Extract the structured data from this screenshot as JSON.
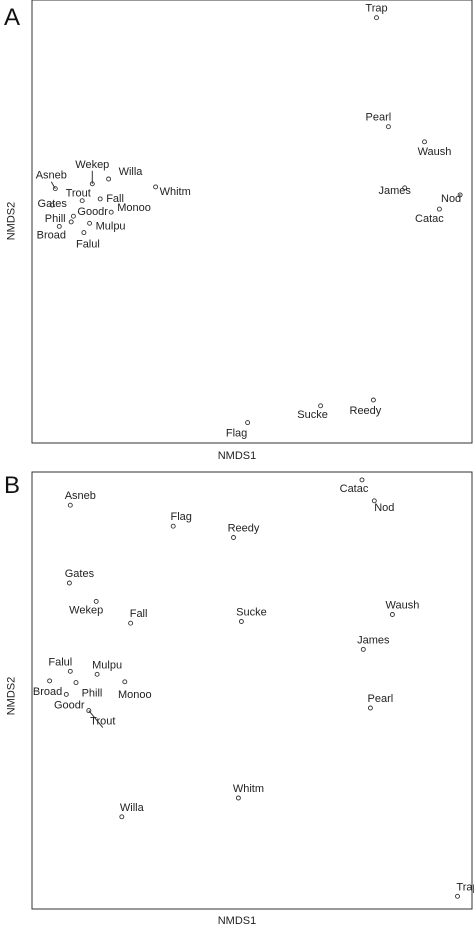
{
  "chart_data": [
    {
      "type": "scatter",
      "panel": "A",
      "xlabel": "NMDS1",
      "ylabel": "NMDS2",
      "xlim": [
        0,
        100
      ],
      "ylim": [
        0,
        100
      ],
      "points": [
        {
          "name": "Trap",
          "x": 78.3,
          "y": 96.0
        },
        {
          "name": "Pearl",
          "x": 81.0,
          "y": 71.4
        },
        {
          "name": "Waush",
          "x": 89.2,
          "y": 68.0
        },
        {
          "name": "James",
          "x": 84.7,
          "y": 57.6
        },
        {
          "name": "Nod",
          "x": 97.3,
          "y": 56.0
        },
        {
          "name": "Catac",
          "x": 92.6,
          "y": 52.8
        },
        {
          "name": "Wekep",
          "x": 13.7,
          "y": 58.5
        },
        {
          "name": "Willa",
          "x": 17.4,
          "y": 59.6
        },
        {
          "name": "Asneb",
          "x": 5.3,
          "y": 57.4
        },
        {
          "name": "Trout",
          "x": 11.4,
          "y": 54.7
        },
        {
          "name": "Fall",
          "x": 15.5,
          "y": 55.1
        },
        {
          "name": "Gates",
          "x": 4.6,
          "y": 53.7
        },
        {
          "name": "Whitm",
          "x": 28.1,
          "y": 57.8
        },
        {
          "name": "Goodr",
          "x": 9.4,
          "y": 51.2
        },
        {
          "name": "Monoo",
          "x": 18.0,
          "y": 52.1
        },
        {
          "name": "Phill",
          "x": 8.9,
          "y": 49.9
        },
        {
          "name": "Mulpu",
          "x": 13.1,
          "y": 49.6
        },
        {
          "name": "Broad",
          "x": 6.2,
          "y": 48.9
        },
        {
          "name": "Falul",
          "x": 11.8,
          "y": 47.5
        },
        {
          "name": "Flag",
          "x": 49.0,
          "y": 4.6
        },
        {
          "name": "Sucke",
          "x": 65.6,
          "y": 8.4
        },
        {
          "name": "Reedy",
          "x": 77.6,
          "y": 9.7
        }
      ]
    },
    {
      "type": "scatter",
      "panel": "B",
      "xlabel": "NMDS1",
      "ylabel": "NMDS2",
      "xlim": [
        0,
        100
      ],
      "ylim": [
        0,
        100
      ],
      "points": [
        {
          "name": "Asneb",
          "x": 8.7,
          "y": 92.4
        },
        {
          "name": "Catac",
          "x": 75.0,
          "y": 98.2
        },
        {
          "name": "Nod",
          "x": 77.8,
          "y": 93.4
        },
        {
          "name": "Flag",
          "x": 32.1,
          "y": 87.6
        },
        {
          "name": "Reedy",
          "x": 45.8,
          "y": 85.0
        },
        {
          "name": "Gates",
          "x": 8.5,
          "y": 74.6
        },
        {
          "name": "Wekep",
          "x": 14.6,
          "y": 70.4
        },
        {
          "name": "Fall",
          "x": 22.4,
          "y": 65.4
        },
        {
          "name": "Sucke",
          "x": 47.6,
          "y": 65.8
        },
        {
          "name": "Waush",
          "x": 81.9,
          "y": 67.4
        },
        {
          "name": "James",
          "x": 75.3,
          "y": 59.4
        },
        {
          "name": "Falul",
          "x": 8.7,
          "y": 54.4
        },
        {
          "name": "Mulpu",
          "x": 14.8,
          "y": 53.7
        },
        {
          "name": "Broad",
          "x": 4.0,
          "y": 52.2
        },
        {
          "name": "Phill",
          "x": 10.0,
          "y": 51.8
        },
        {
          "name": "Monoo",
          "x": 21.1,
          "y": 52.0
        },
        {
          "name": "Goodr",
          "x": 7.8,
          "y": 49.1
        },
        {
          "name": "Trout",
          "x": 12.9,
          "y": 45.4
        },
        {
          "name": "Pearl",
          "x": 76.9,
          "y": 46.0
        },
        {
          "name": "Whitm",
          "x": 46.9,
          "y": 25.4
        },
        {
          "name": "Willa",
          "x": 20.4,
          "y": 21.1
        },
        {
          "name": "Trap",
          "x": 96.7,
          "y": 2.9
        }
      ]
    }
  ],
  "panels": [
    {
      "letter": "A",
      "xlabel": "NMDS1",
      "ylabel": "NMDS2"
    },
    {
      "letter": "B",
      "xlabel": "NMDS1",
      "ylabel": "NMDS2"
    }
  ]
}
